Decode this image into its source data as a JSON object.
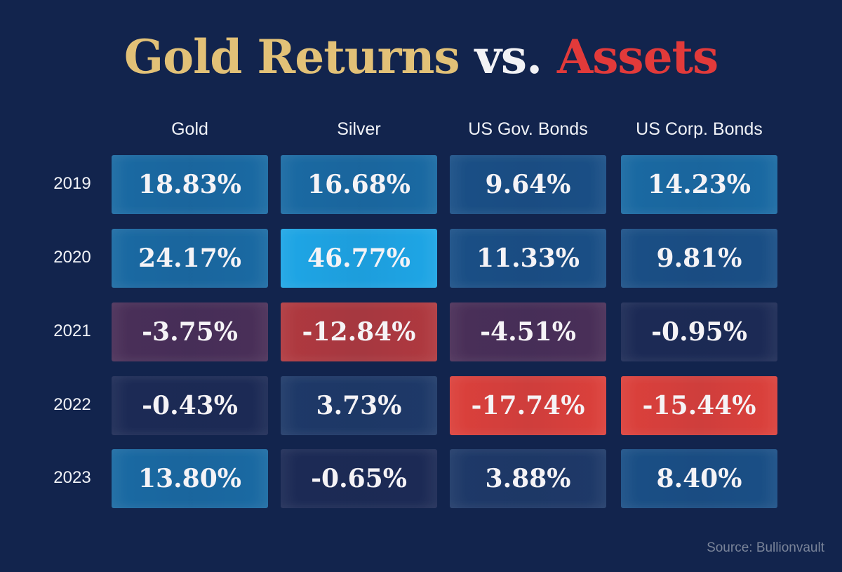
{
  "title": {
    "part1": "Gold Returns",
    "part2": "vs.",
    "part3": "Assets"
  },
  "source": "Source: Bullionvault",
  "chart_data": {
    "type": "table",
    "title": "Gold Returns vs. Assets",
    "columns": [
      "Gold",
      "Silver",
      "US Gov. Bonds",
      "US Corp. Bonds"
    ],
    "rows": [
      "2019",
      "2020",
      "2021",
      "2022",
      "2023"
    ],
    "labels": [
      [
        "18.83%",
        "16.68%",
        "9.64%",
        "14.23%"
      ],
      [
        "24.17%",
        "46.77%",
        "11.33%",
        "9.81%"
      ],
      [
        "-3.75%",
        "-12.84%",
        "-4.51%",
        "-0.95%"
      ],
      [
        "-0.43%",
        "3.73%",
        "-17.74%",
        "-15.44%"
      ],
      [
        "13.80%",
        "-0.65%",
        "3.88%",
        "8.40%"
      ]
    ],
    "values": [
      [
        18.83,
        16.68,
        9.64,
        14.23
      ],
      [
        24.17,
        46.77,
        11.33,
        9.81
      ],
      [
        -3.75,
        -12.84,
        -4.51,
        -0.95
      ],
      [
        -0.43,
        3.73,
        -17.74,
        -15.44
      ],
      [
        13.8,
        -0.65,
        3.88,
        8.4
      ]
    ]
  },
  "colors": {
    "very_high": "#1ea6e6",
    "high": "#1a6aa3",
    "mid": "#1a4f86",
    "low": "#1e3968",
    "flat": "#1c2a55",
    "slight_neg": "#4a2f58",
    "neg": "#b0393f",
    "very_neg": "#dc403b"
  }
}
